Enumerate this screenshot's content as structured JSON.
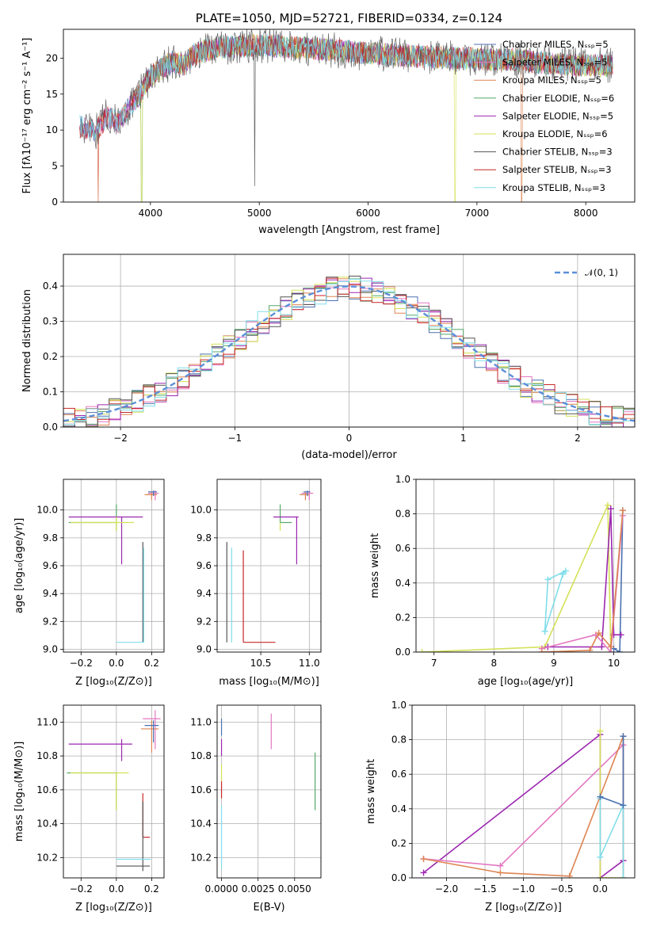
{
  "chart_data": [
    {
      "id": "spectrum",
      "type": "line",
      "title": "PLATE=1050, MJD=52721, FIBERID=0334, z=0.124",
      "xlabel": "wavelength [Angstrom, rest frame]",
      "ylabel": "Flux [fλ10⁻¹⁷ erg cm⁻² s⁻¹ A⁻¹]",
      "xlim": [
        3200,
        8450
      ],
      "ylim": [
        0,
        24
      ],
      "xticks": [
        4000,
        5000,
        6000,
        7000,
        8000
      ],
      "yticks": [
        0,
        5,
        10,
        15,
        20
      ],
      "legend_position": "upper-right",
      "series": [
        {
          "name": "Chabrier MILES, Nₛₛₚ=5",
          "color": "#4c72b0"
        },
        {
          "name": "Salpeter MILES, Nₛₛₚ=5",
          "color": "#e377c2"
        },
        {
          "name": "Kroupa MILES, Nₛₛₚ=5",
          "color": "#dd8452"
        },
        {
          "name": "Chabrier ELODIE, Nₛₛₚ=6",
          "color": "#55a868"
        },
        {
          "name": "Salpeter ELODIE, Nₛₛₚ=5",
          "color": "#9c27b0"
        },
        {
          "name": "Kroupa ELODIE, Nₛₛₚ=6",
          "color": "#d4e157"
        },
        {
          "name": "Chabrier STELIB, Nₛₛₚ=3",
          "color": "#555555"
        },
        {
          "name": "Salpeter STELIB, Nₛₛₚ=3",
          "color": "#c62828"
        },
        {
          "name": "Kroupa STELIB, Nₛₛₚ=3",
          "color": "#80deea"
        }
      ],
      "continuum": {
        "x": [
          3350,
          3500,
          3600,
          3700,
          3800,
          3900,
          4000,
          4100,
          4200,
          4300,
          4400,
          4500,
          4700,
          5000,
          5300,
          5600,
          5900,
          6200,
          6500,
          6800,
          7100,
          7300,
          7500,
          7700,
          8000,
          8200
        ],
        "y": [
          10.5,
          9.8,
          12.0,
          11.0,
          13.0,
          15.0,
          17.5,
          18.5,
          19.5,
          19.0,
          20.5,
          21.0,
          21.5,
          21.8,
          21.5,
          21.2,
          20.8,
          20.5,
          20.2,
          20.0,
          19.8,
          19.8,
          19.5,
          19.2,
          19.0,
          19.0
        ]
      },
      "drops": [
        {
          "x": 3520,
          "series": [
            1,
            2
          ]
        },
        {
          "x": 3920,
          "series": [
            3,
            5
          ]
        },
        {
          "x": 6800,
          "series": [
            5
          ]
        },
        {
          "x": 7410,
          "series": [
            2
          ]
        }
      ]
    },
    {
      "id": "residuals",
      "type": "step",
      "xlabel": "(data-model)/error",
      "ylabel": "Normed distribution",
      "xlim": [
        -2.5,
        2.5
      ],
      "ylim": [
        0,
        0.49
      ],
      "xticks": [
        -2,
        -1,
        0,
        1,
        2
      ],
      "yticks": [
        0.0,
        0.1,
        0.2,
        0.3,
        0.4
      ],
      "grid": true,
      "legend": "𝒩(0, 1)",
      "gaussian_color": "#5b8fd9"
    },
    {
      "id": "age_vs_Z",
      "type": "errorbar",
      "xlabel": "Z [log₁₀(Z/Z⊙)]",
      "ylabel": "age  [log₁₀(age/yr)]",
      "xlim": [
        -0.3,
        0.27
      ],
      "ylim": [
        8.98,
        10.22
      ],
      "xticks": [
        -0.2,
        0.0,
        0.2
      ],
      "yticks": [
        9.0,
        9.2,
        9.4,
        9.6,
        9.8,
        10.0
      ],
      "grid": true,
      "points": [
        {
          "x": 0.22,
          "y": 10.12,
          "xerr": [
            0.04,
            0.02
          ],
          "yerr": [
            0.05,
            0.02
          ],
          "color": "#e377c2"
        },
        {
          "x": 0.2,
          "y": 10.11,
          "xerr": [
            0.04,
            0.03
          ],
          "yerr": [
            0.04,
            0.02
          ],
          "color": "#dd8452"
        },
        {
          "x": 0.21,
          "y": 10.13,
          "xerr": [
            0.03,
            0.02
          ],
          "yerr": [
            0.03,
            0.01
          ],
          "color": "#4c72b0"
        },
        {
          "x": 0.0,
          "y": 9.91,
          "xerr": [
            0.27,
            0.0
          ],
          "yerr": [
            0.06,
            0.13
          ],
          "color": "#55a868"
        },
        {
          "x": 0.03,
          "y": 9.95,
          "xerr": [
            0.3,
            0.12
          ],
          "yerr": [
            0.34,
            0.0
          ],
          "color": "#9c27b0"
        },
        {
          "x": 0.0,
          "y": 9.91,
          "xerr": [
            0.26,
            0.1
          ],
          "yerr": [
            0.06,
            0.04
          ],
          "color": "#d4e157"
        },
        {
          "x": 0.15,
          "y": 9.05,
          "xerr": [
            0.0,
            0.0
          ],
          "yerr": [
            0.0,
            0.72
          ],
          "color": "#555555"
        },
        {
          "x": 0.155,
          "y": 9.05,
          "xerr": [
            0.155,
            0.0
          ],
          "yerr": [
            0.0,
            0.68
          ],
          "color": "#80deea"
        }
      ]
    },
    {
      "id": "age_vs_mass",
      "type": "errorbar",
      "xlabel": "mass [log₁₀(M/M⊙)]",
      "ylabel": "",
      "xlim": [
        10.05,
        11.12
      ],
      "ylim": [
        8.98,
        10.22
      ],
      "xticks": [
        10.5,
        11.0
      ],
      "yticks": [
        9.0,
        9.2,
        9.4,
        9.6,
        9.8,
        10.0
      ],
      "grid": true,
      "points": [
        {
          "x": 11.0,
          "y": 10.12,
          "xerr": [
            0.08,
            0.04
          ],
          "yerr": [
            0.05,
            0.02
          ],
          "color": "#e377c2"
        },
        {
          "x": 10.96,
          "y": 10.11,
          "xerr": [
            0.06,
            0.04
          ],
          "yerr": [
            0.04,
            0.02
          ],
          "color": "#dd8452"
        },
        {
          "x": 10.98,
          "y": 10.13,
          "xerr": [
            0.04,
            0.03
          ],
          "yerr": [
            0.03,
            0.01
          ],
          "color": "#4c72b0"
        },
        {
          "x": 10.7,
          "y": 9.91,
          "xerr": [
            0.0,
            0.12
          ],
          "yerr": [
            0.0,
            0.13
          ],
          "color": "#55a868"
        },
        {
          "x": 10.87,
          "y": 9.95,
          "xerr": [
            0.24,
            0.02
          ],
          "yerr": [
            0.34,
            0.0
          ],
          "color": "#9c27b0"
        },
        {
          "x": 10.7,
          "y": 9.91,
          "xerr": [
            0.0,
            0.0
          ],
          "yerr": [
            0.06,
            0.0
          ],
          "color": "#d4e157"
        },
        {
          "x": 10.15,
          "y": 9.05,
          "xerr": [
            0.0,
            0.0
          ],
          "yerr": [
            0.0,
            0.72
          ],
          "color": "#555555"
        },
        {
          "x": 10.2,
          "y": 9.05,
          "xerr": [
            0.0,
            0.0
          ],
          "yerr": [
            0.0,
            0.68
          ],
          "color": "#80deea"
        },
        {
          "x": 10.32,
          "y": 9.05,
          "xerr": [
            0.0,
            0.33
          ],
          "yerr": [
            0.0,
            0.66
          ],
          "color": "#c62828"
        }
      ]
    },
    {
      "id": "weight_vs_age",
      "type": "line",
      "xlabel": "age  [log₁₀(age/yr)]",
      "ylabel": "mass weight",
      "xlim": [
        6.7,
        10.35
      ],
      "ylim": [
        0,
        1.0
      ],
      "xticks": [
        7,
        8,
        9,
        10
      ],
      "yticks": [
        0.0,
        0.2,
        0.4,
        0.6,
        0.8,
        1.0
      ],
      "grid": true,
      "series": [
        {
          "color": "#d4e157",
          "x": [
            6.8,
            8.85,
            9.9,
            9.95
          ],
          "y": [
            0.0,
            0.03,
            0.85,
            0.0
          ]
        },
        {
          "color": "#80deea",
          "x": [
            8.85,
            8.9,
            9.2,
            9.15,
            8.85
          ],
          "y": [
            0.12,
            0.42,
            0.47,
            0.45,
            0.12
          ]
        },
        {
          "color": "#4c72b0",
          "x": [
            10.15,
            10.1,
            10.0
          ],
          "y": [
            0.82,
            0.0,
            0.02
          ]
        },
        {
          "color": "#9c27b0",
          "x": [
            8.9,
            9.8,
            9.95,
            10.0,
            10.12
          ],
          "y": [
            0.03,
            0.03,
            0.83,
            0.1,
            0.1
          ]
        },
        {
          "color": "#e377c2",
          "x": [
            8.8,
            9.7,
            9.95,
            10.15
          ],
          "y": [
            0.02,
            0.1,
            0.0,
            0.79
          ]
        },
        {
          "color": "#dd8452",
          "x": [
            8.8,
            9.6,
            9.75,
            9.95,
            10.15
          ],
          "y": [
            0.0,
            0.01,
            0.11,
            0.03,
            0.82
          ]
        }
      ]
    },
    {
      "id": "mass_vs_Z",
      "type": "errorbar",
      "xlabel": "Z [log₁₀(Z/Z⊙)]",
      "ylabel": "mass [log₁₀(M/M⊙)]",
      "xlim": [
        -0.3,
        0.27
      ],
      "ylim": [
        10.08,
        11.1
      ],
      "xticks": [
        -0.2,
        0.0,
        0.2
      ],
      "yticks": [
        10.2,
        10.4,
        10.6,
        10.8,
        11.0
      ],
      "grid": true,
      "points": [
        {
          "x": 0.22,
          "y": 11.02,
          "xerr": [
            0.07,
            0.03
          ],
          "yerr": [
            0.18,
            0.05
          ],
          "color": "#e377c2"
        },
        {
          "x": 0.2,
          "y": 10.96,
          "xerr": [
            0.06,
            0.04
          ],
          "yerr": [
            0.14,
            0.05
          ],
          "color": "#dd8452"
        },
        {
          "x": 0.21,
          "y": 10.98,
          "xerr": [
            0.05,
            0.03
          ],
          "yerr": [
            0.1,
            0.03
          ],
          "color": "#4c72b0"
        },
        {
          "x": 0.03,
          "y": 10.87,
          "xerr": [
            0.3,
            0.06
          ],
          "yerr": [
            0.1,
            0.03
          ],
          "color": "#9c27b0"
        },
        {
          "x": 0.0,
          "y": 10.7,
          "xerr": [
            0.28,
            0.0
          ],
          "yerr": [
            0.22,
            0.0
          ],
          "color": "#55a868"
        },
        {
          "x": 0.0,
          "y": 10.7,
          "xerr": [
            0.26,
            0.07
          ],
          "yerr": [
            0.22,
            0.0
          ],
          "color": "#d4e157"
        },
        {
          "x": 0.15,
          "y": 10.32,
          "xerr": [
            0.0,
            0.04
          ],
          "yerr": [
            0.0,
            0.0
          ],
          "color": "#c62828"
        },
        {
          "x": 0.15,
          "y": 10.32,
          "xerr": [
            0.0,
            0.0
          ],
          "yerr": [
            0.0,
            0.26
          ],
          "color": "#c62828"
        },
        {
          "x": 0.15,
          "y": 10.15,
          "xerr": [
            0.15,
            0.04
          ],
          "yerr": [
            0.03,
            0.38
          ],
          "color": "#555555"
        },
        {
          "x": 0.155,
          "y": 10.19,
          "xerr": [
            0.155,
            0.04
          ],
          "yerr": [
            0.0,
            0.0
          ],
          "color": "#80deea"
        }
      ]
    },
    {
      "id": "mass_vs_ebv",
      "type": "errorbar",
      "xlabel": "E(B-V)",
      "ylabel": "",
      "xlim": [
        -0.0003,
        0.0068
      ],
      "ylim": [
        10.08,
        11.1
      ],
      "xticks": [
        0.0,
        0.0025,
        0.005
      ],
      "xticklabels": [
        "0.0000",
        "0.0025",
        "0.0050"
      ],
      "yticks": [
        10.2,
        10.4,
        10.6,
        10.8,
        11.0
      ],
      "grid": true,
      "points": [
        {
          "x": 0.0,
          "y": 10.98,
          "xerr": [
            0,
            0
          ],
          "yerr": [
            0.06,
            0.04
          ],
          "color": "#4c72b0"
        },
        {
          "x": 0.0,
          "y": 10.87,
          "xerr": [
            0,
            0
          ],
          "yerr": [
            0.07,
            0.03
          ],
          "color": "#9c27b0"
        },
        {
          "x": 0.0,
          "y": 10.7,
          "xerr": [
            0,
            0
          ],
          "yerr": [
            0.05,
            0.05
          ],
          "color": "#d4e157"
        },
        {
          "x": 0.0,
          "y": 10.6,
          "xerr": [
            0,
            0
          ],
          "yerr": [
            0.05,
            0.05
          ],
          "color": "#c62828"
        },
        {
          "x": 0.0,
          "y": 10.19,
          "xerr": [
            0,
            0
          ],
          "yerr": [
            0.06,
            0.32
          ],
          "color": "#80deea"
        },
        {
          "x": 0.0034,
          "y": 10.94,
          "xerr": [
            0,
            0
          ],
          "yerr": [
            0.1,
            0.11
          ],
          "color": "#e377c2"
        },
        {
          "x": 0.0064,
          "y": 10.65,
          "xerr": [
            0,
            0
          ],
          "yerr": [
            0.17,
            0.17
          ],
          "color": "#55a868"
        }
      ]
    },
    {
      "id": "weight_vs_Z",
      "type": "line",
      "xlabel": "Z [log₁₀(Z/Z⊙)]",
      "ylabel": "mass weight",
      "xlim": [
        -2.45,
        0.45
      ],
      "ylim": [
        0,
        1.0
      ],
      "xticks": [
        -2.0,
        -1.5,
        -1.0,
        -0.5,
        0.0
      ],
      "yticks": [
        0.0,
        0.2,
        0.4,
        0.6,
        0.8,
        1.0
      ],
      "grid": true,
      "series": [
        {
          "color": "#9c27b0",
          "x": [
            -2.3,
            0.0,
            0.0,
            0.3,
            0.3
          ],
          "y": [
            0.03,
            0.83,
            0.0,
            0.1,
            0.1
          ]
        },
        {
          "color": "#e377c2",
          "x": [
            -2.3,
            -1.3,
            0.3,
            0.3
          ],
          "y": [
            0.11,
            0.07,
            0.77,
            0.0
          ]
        },
        {
          "color": "#dd8452",
          "x": [
            -2.3,
            -1.3,
            -0.4,
            0.3,
            0.3
          ],
          "y": [
            0.11,
            0.03,
            0.01,
            0.82,
            0.0
          ]
        },
        {
          "color": "#d4e157",
          "x": [
            0.0,
            0.0,
            0.3
          ],
          "y": [
            0.85,
            0.0,
            0.0
          ]
        },
        {
          "color": "#80deea",
          "x": [
            0.0,
            0.0,
            0.3,
            0.3
          ],
          "y": [
            0.46,
            0.12,
            0.42,
            0.0
          ]
        },
        {
          "color": "#4c72b0",
          "x": [
            0.0,
            0.3,
            0.3
          ],
          "y": [
            0.47,
            0.42,
            0.82
          ]
        }
      ]
    }
  ]
}
